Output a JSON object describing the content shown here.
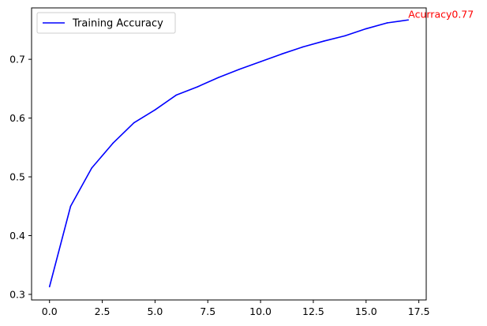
{
  "chart_data": {
    "type": "line",
    "title": "",
    "xlabel": "",
    "ylabel": "",
    "xlim": [
      -0.85,
      17.85
    ],
    "ylim": [
      0.2905,
      0.7875
    ],
    "grid": false,
    "legend_placement": "top-left",
    "x_ticks": [
      0.0,
      2.5,
      5.0,
      7.5,
      10.0,
      12.5,
      15.0,
      17.5
    ],
    "x_tick_labels": [
      "0.0",
      "2.5",
      "5.0",
      "7.5",
      "10.0",
      "12.5",
      "15.0",
      "17.5"
    ],
    "y_ticks": [
      0.3,
      0.4,
      0.5,
      0.6,
      0.7
    ],
    "y_tick_labels": [
      "0.3",
      "0.4",
      "0.5",
      "0.6",
      "0.7"
    ],
    "x": [
      0,
      1,
      2,
      3,
      4,
      5,
      6,
      7,
      8,
      9,
      10,
      11,
      12,
      13,
      14,
      15,
      16,
      17
    ],
    "series": [
      {
        "name": "Training Accuracy",
        "color": "#0000ff",
        "values": [
          0.313,
          0.45,
          0.515,
          0.557,
          0.592,
          0.614,
          0.639,
          0.653,
          0.669,
          0.683,
          0.696,
          0.709,
          0.721,
          0.731,
          0.74,
          0.752,
          0.762,
          0.767
        ]
      }
    ],
    "annotations": [
      {
        "text": "Acurracy0.77",
        "x": 17,
        "y": 0.767,
        "color": "#ff0000"
      }
    ]
  }
}
